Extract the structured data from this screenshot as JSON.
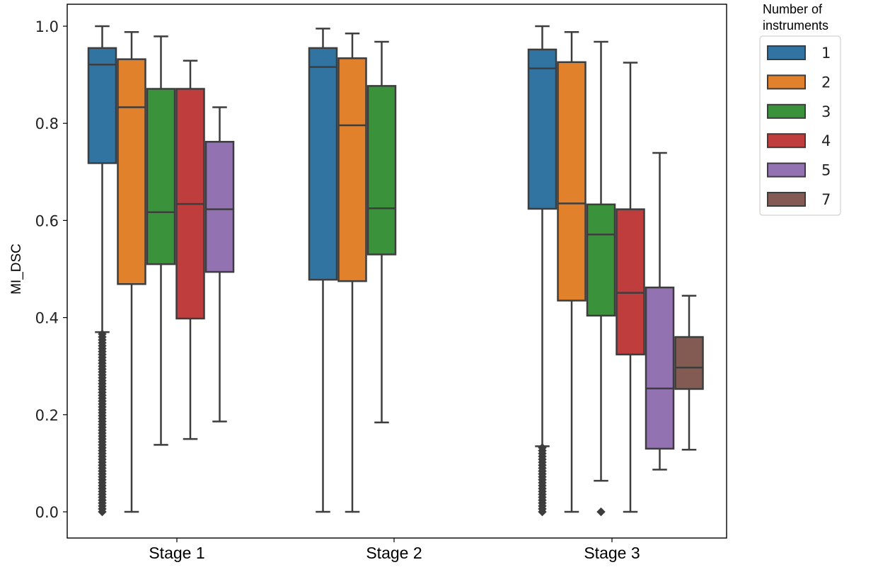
{
  "chart_data": {
    "type": "box",
    "title": "",
    "xlabel": "",
    "ylabel": "MI_DSC",
    "ylim": [
      -0.05,
      1.05
    ],
    "yticks": [
      "0.0",
      "0.2",
      "0.4",
      "0.6",
      "0.8",
      "1.0"
    ],
    "categories": [
      "Stage 1",
      "Stage 2",
      "Stage 3"
    ],
    "legend": {
      "title_line1": "Number of",
      "title_line2": "instruments",
      "position": "outside-top-right"
    },
    "series": [
      {
        "name": "1",
        "color": "#3274a1",
        "boxes": [
          {
            "category": "Stage 1",
            "whisker_low": 0.37,
            "q1": 0.718,
            "median": 0.921,
            "q3": 0.955,
            "whisker_high": 1.0,
            "outlier_range": [
              0.0,
              0.37
            ]
          },
          {
            "category": "Stage 2",
            "whisker_low": 0.0,
            "q1": 0.478,
            "median": 0.916,
            "q3": 0.955,
            "whisker_high": 0.995
          },
          {
            "category": "Stage 3",
            "whisker_low": 0.135,
            "q1": 0.624,
            "median": 0.913,
            "q3": 0.952,
            "whisker_high": 1.0,
            "outlier_range": [
              0.0,
              0.135
            ]
          }
        ]
      },
      {
        "name": "2",
        "color": "#e1812c",
        "boxes": [
          {
            "category": "Stage 1",
            "whisker_low": 0.0,
            "q1": 0.469,
            "median": 0.833,
            "q3": 0.932,
            "whisker_high": 0.988
          },
          {
            "category": "Stage 2",
            "whisker_low": 0.0,
            "q1": 0.475,
            "median": 0.796,
            "q3": 0.934,
            "whisker_high": 0.985
          },
          {
            "category": "Stage 3",
            "whisker_low": 0.0,
            "q1": 0.435,
            "median": 0.635,
            "q3": 0.926,
            "whisker_high": 0.988
          }
        ]
      },
      {
        "name": "3",
        "color": "#3a923a",
        "boxes": [
          {
            "category": "Stage 1",
            "whisker_low": 0.138,
            "q1": 0.51,
            "median": 0.617,
            "q3": 0.871,
            "whisker_high": 0.979
          },
          {
            "category": "Stage 2",
            "whisker_low": 0.184,
            "q1": 0.53,
            "median": 0.625,
            "q3": 0.877,
            "whisker_high": 0.968
          },
          {
            "category": "Stage 3",
            "whisker_low": 0.064,
            "q1": 0.404,
            "median": 0.571,
            "q3": 0.633,
            "whisker_high": 0.968,
            "outlier_range": [
              0.0,
              0.0
            ]
          }
        ]
      },
      {
        "name": "4",
        "color": "#c03d3e",
        "boxes": [
          {
            "category": "Stage 1",
            "whisker_low": 0.15,
            "q1": 0.398,
            "median": 0.634,
            "q3": 0.871,
            "whisker_high": 0.929
          },
          {
            "category": "Stage 3",
            "whisker_low": 0.0,
            "q1": 0.324,
            "median": 0.451,
            "q3": 0.623,
            "whisker_high": 0.925
          }
        ]
      },
      {
        "name": "5",
        "color": "#9372b2",
        "boxes": [
          {
            "category": "Stage 1",
            "whisker_low": 0.186,
            "q1": 0.494,
            "median": 0.623,
            "q3": 0.762,
            "whisker_high": 0.833
          },
          {
            "category": "Stage 3",
            "whisker_low": 0.087,
            "q1": 0.13,
            "median": 0.254,
            "q3": 0.462,
            "whisker_high": 0.739
          }
        ]
      },
      {
        "name": "7",
        "color": "#845b53",
        "boxes": [
          {
            "category": "Stage 3",
            "whisker_low": 0.128,
            "q1": 0.253,
            "median": 0.297,
            "q3": 0.36,
            "whisker_high": 0.445
          }
        ]
      }
    ]
  }
}
